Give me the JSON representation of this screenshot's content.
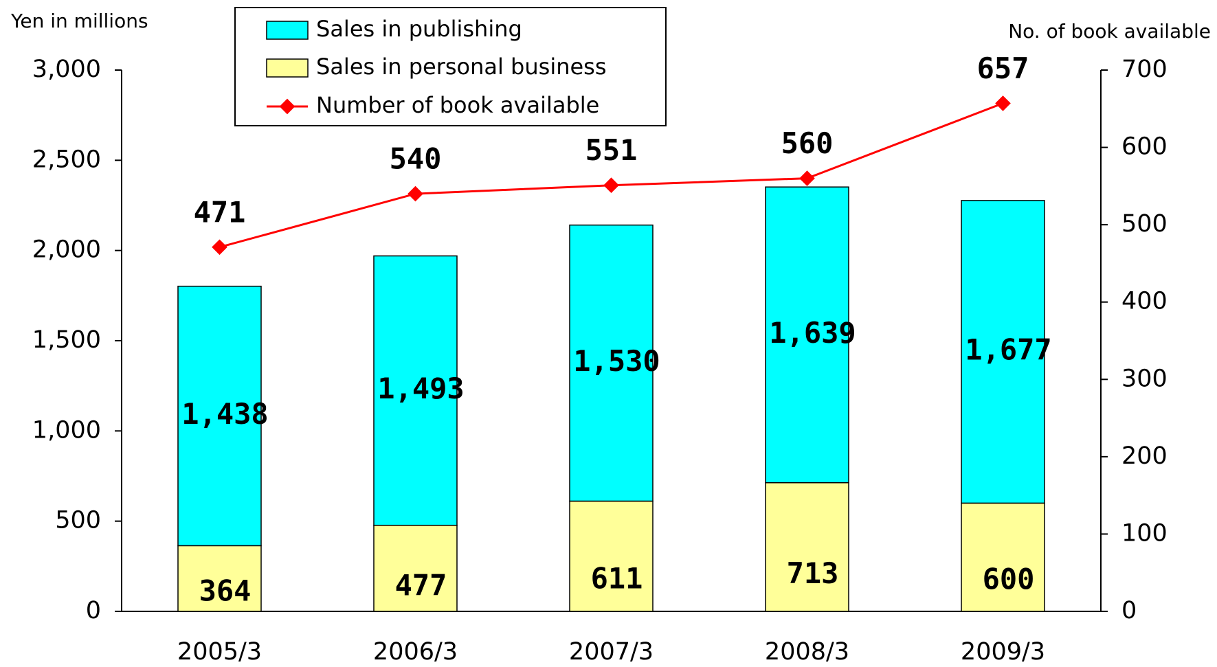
{
  "chart_data": {
    "type": "bar",
    "y_label": "Yen in millions",
    "y2_label": "No. of book available",
    "categories": [
      "2005/3",
      "2006/3",
      "2007/3",
      "2008/3",
      "2009/3"
    ],
    "series": [
      {
        "name": "Sales in publishing",
        "color": "#00ffff",
        "values": [
          1438,
          1493,
          1530,
          1639,
          1677
        ],
        "value_labels": [
          "1,438",
          "1,493",
          "1,530",
          "1,639",
          "1,677"
        ]
      },
      {
        "name": "Sales in personal business",
        "color": "#ffff99",
        "values": [
          364,
          477,
          611,
          713,
          600
        ]
      },
      {
        "name": "Number of book available",
        "type": "line",
        "axis": "y2",
        "color": "#ff0000",
        "values": [
          471,
          540,
          551,
          560,
          657
        ]
      }
    ],
    "stacked": true,
    "ylim": [
      0,
      3000
    ],
    "yticks": [
      0,
      500,
      {
        "value": 1000,
        "label": "1,000"
      },
      {
        "value": 1500,
        "label": "1,500"
      },
      {
        "value": 2000,
        "label": "2,000"
      },
      {
        "value": 2500,
        "label": "2,500"
      },
      {
        "value": 3000,
        "label": "3,000"
      }
    ],
    "y2lim": [
      0,
      700
    ],
    "y2ticks": [
      0,
      100,
      200,
      300,
      400,
      500,
      600,
      700
    ]
  }
}
